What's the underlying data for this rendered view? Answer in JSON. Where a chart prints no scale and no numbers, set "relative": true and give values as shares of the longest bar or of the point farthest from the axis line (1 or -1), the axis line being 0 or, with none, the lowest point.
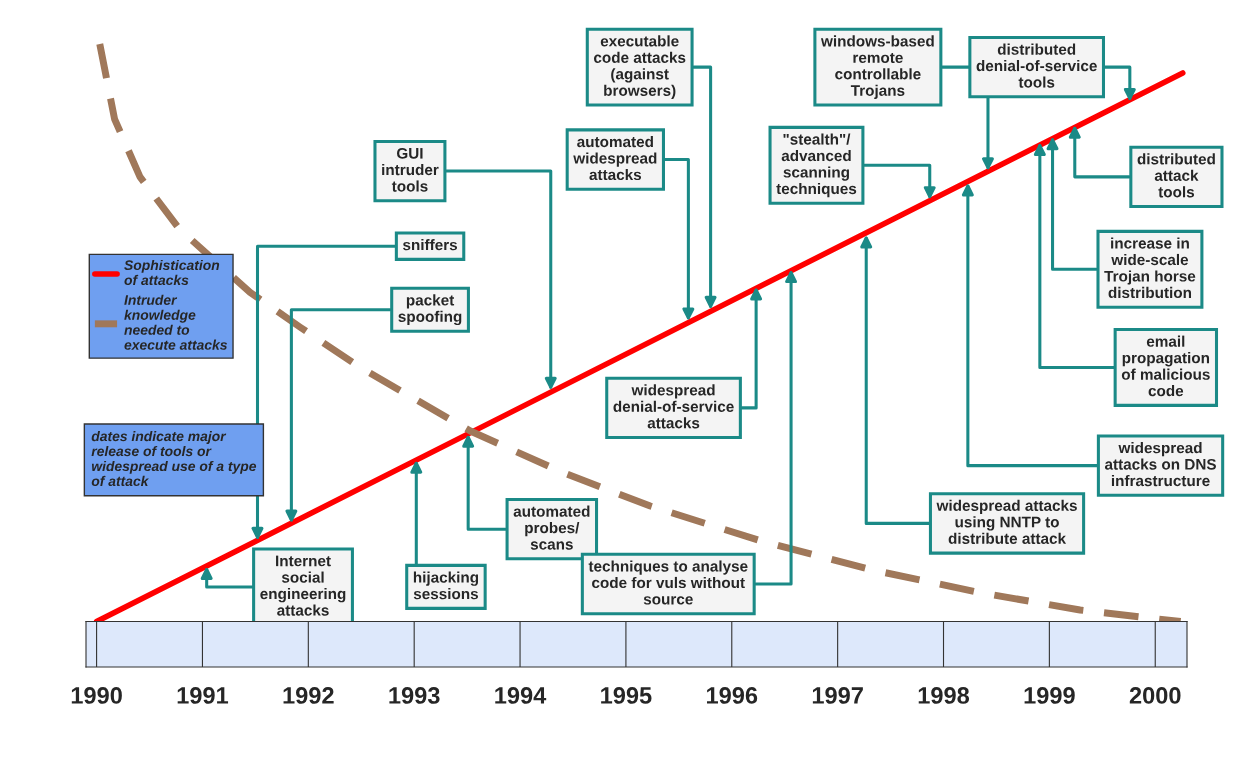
{
  "chart_data": {
    "type": "line",
    "relative": true,
    "xlim": [
      1989.9,
      2000.3
    ],
    "xticks": [
      1990,
      1991,
      1992,
      1993,
      1994,
      1995,
      1996,
      1997,
      1998,
      1999,
      2000
    ],
    "series": [
      {
        "name": "Sophistication of attacks",
        "color": "#ff0000",
        "line_style": "solid",
        "x": [
          1990.0,
          2000.26
        ],
        "values": [
          0.0,
          0.95
        ]
      },
      {
        "name": "Intruder knowledge needed to execute attacks",
        "color": "#a0785a",
        "line_style": "dashed",
        "x": [
          1990.03,
          1990.17,
          1990.41,
          1990.78,
          1991.45,
          1991.92,
          1992.49,
          1993.53,
          1994.38,
          1995.23,
          1996.27,
          1997.31,
          1998.35,
          1999.29,
          2000.24
        ],
        "values": [
          1.0,
          0.87,
          0.77,
          0.68,
          0.57,
          0.51,
          0.44,
          0.33,
          0.26,
          0.2,
          0.14,
          0.09,
          0.05,
          0.02,
          0.0
        ]
      }
    ],
    "legend": "left",
    "marker": "none",
    "grid": false,
    "annotations": [
      {
        "text": "Internet social engineering attacks",
        "x": 1991.04,
        "y": 0.096
      },
      {
        "text": "sniffers",
        "x": 1991.52,
        "y": 0.14
      },
      {
        "text": "packet spoofing",
        "x": 1991.84,
        "y": 0.17
      },
      {
        "text": "hijacking sessions",
        "x": 1993.02,
        "y": 0.28
      },
      {
        "text": "automated probes/ scans",
        "x": 1993.51,
        "y": 0.325
      },
      {
        "text": "GUI intruder tools",
        "x": 1994.29,
        "y": 0.4
      },
      {
        "text": "widespread denial-of-service attacks",
        "x": 1996.23,
        "y": 0.58
      },
      {
        "text": "automated widespread attacks",
        "x": 1995.59,
        "y": 0.52
      },
      {
        "text": "executable code attacks (against browsers)",
        "x": 1995.8,
        "y": 0.54
      },
      {
        "text": "techniques to analyse code for vuls without source",
        "x": 1996.56,
        "y": 0.61
      },
      {
        "text": "widespread attacks using NNTP to distribute attack",
        "x": 1997.27,
        "y": 0.67
      },
      {
        "text": "\"stealth\"/ advanced scanning techniques",
        "x": 1997.87,
        "y": 0.73
      },
      {
        "text": "widespread attacks on DNS infrastructure",
        "x": 1998.23,
        "y": 0.76
      },
      {
        "text": "windows-based remote controllable Trojans",
        "x": 1998.42,
        "y": 0.78
      },
      {
        "text": "email propagation of malicious code",
        "x": 1998.91,
        "y": 0.83
      },
      {
        "text": "increase in wide-scale Trojan horse distribution",
        "x": 1999.03,
        "y": 0.84
      },
      {
        "text": "distributed attack tools",
        "x": 1999.24,
        "y": 0.86
      },
      {
        "text": "distributed denial-of-service tools",
        "x": 1999.76,
        "y": 0.9
      },
      "dates indicate major release of tools or widespread use of a type of attack"
    ]
  }
}
